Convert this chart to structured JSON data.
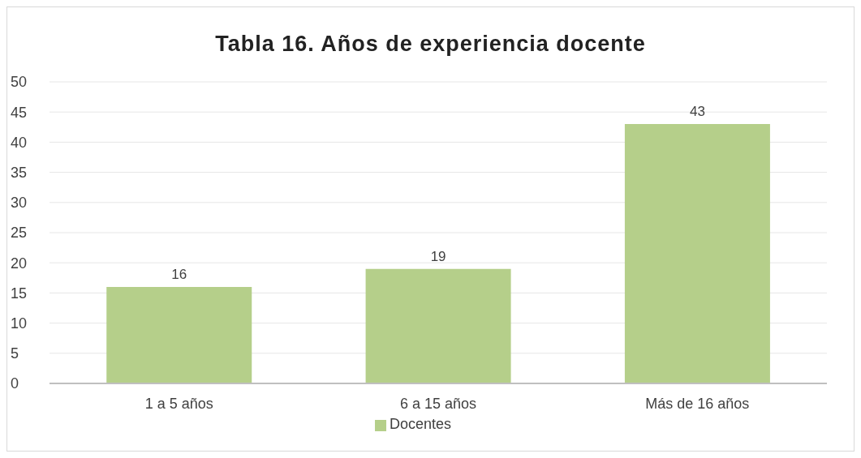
{
  "chart_data": {
    "type": "bar",
    "title": "Tabla 16. Años de experiencia docente",
    "categories": [
      "1 a 5 años",
      "6 a 15 años",
      "Más de 16 años"
    ],
    "series": [
      {
        "name": "Docentes",
        "color": "#b5cf8a",
        "values": [
          16,
          19,
          43
        ]
      }
    ],
    "ylim": [
      0,
      50
    ],
    "yticks": [
      0,
      5,
      10,
      15,
      20,
      25,
      30,
      35,
      40,
      45,
      50
    ],
    "grid": "y",
    "legend": "bottom",
    "data_labels": true
  }
}
